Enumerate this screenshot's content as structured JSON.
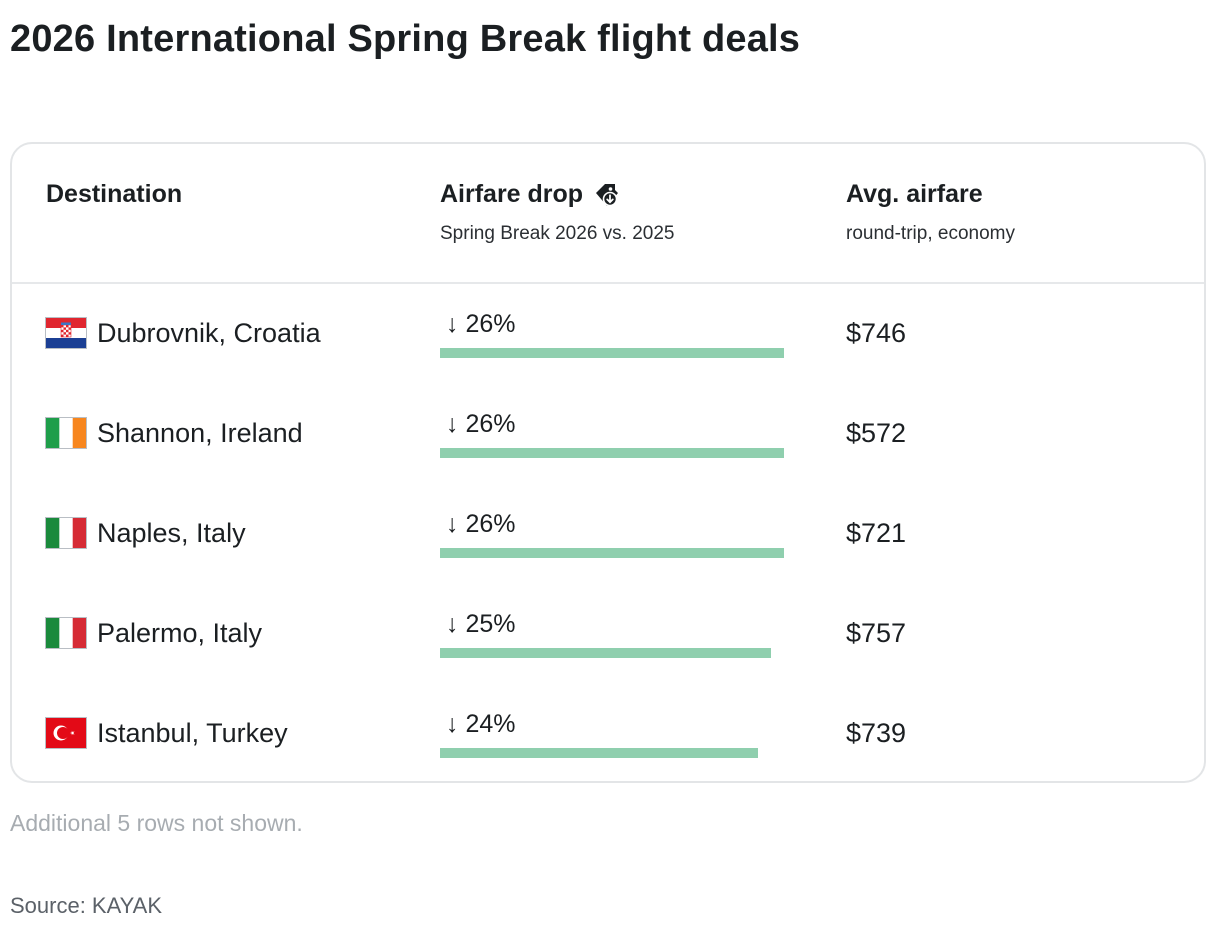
{
  "title": "2026 International Spring Break flight deals",
  "table": {
    "headers": {
      "destination": "Destination",
      "drop_title": "Airfare drop",
      "drop_subtitle": "Spring Break 2026 vs. 2025",
      "fare_title": "Avg. airfare",
      "fare_subtitle": "round-trip, economy"
    }
  },
  "colors": {
    "bar": "#8fcfae",
    "border": "#e3e5e7"
  },
  "chart_data": {
    "type": "table",
    "columns": [
      "Destination",
      "Airfare drop",
      "Avg. airfare"
    ],
    "rows": [
      {
        "destination": "Dubrovnik, Croatia",
        "flag": "croatia-flag-icon",
        "drop_label": "↓ 26%",
        "drop": 26,
        "fare": "$746"
      },
      {
        "destination": "Shannon, Ireland",
        "flag": "ireland-flag-icon",
        "drop_label": "↓ 26%",
        "drop": 26,
        "fare": "$572"
      },
      {
        "destination": "Naples, Italy",
        "flag": "italy-flag-icon",
        "drop_label": "↓ 26%",
        "drop": 26,
        "fare": "$721"
      },
      {
        "destination": "Palermo, Italy",
        "flag": "italy-flag-icon",
        "drop_label": "↓ 25%",
        "drop": 25,
        "fare": "$757"
      },
      {
        "destination": "Istanbul, Turkey",
        "flag": "turkey-flag-icon",
        "drop_label": "↓ 24%",
        "drop": 24,
        "fare": "$739"
      }
    ],
    "bar_max": 26
  },
  "footer": {
    "note": "Additional 5 rows not shown.",
    "source": "Source: KAYAK"
  }
}
